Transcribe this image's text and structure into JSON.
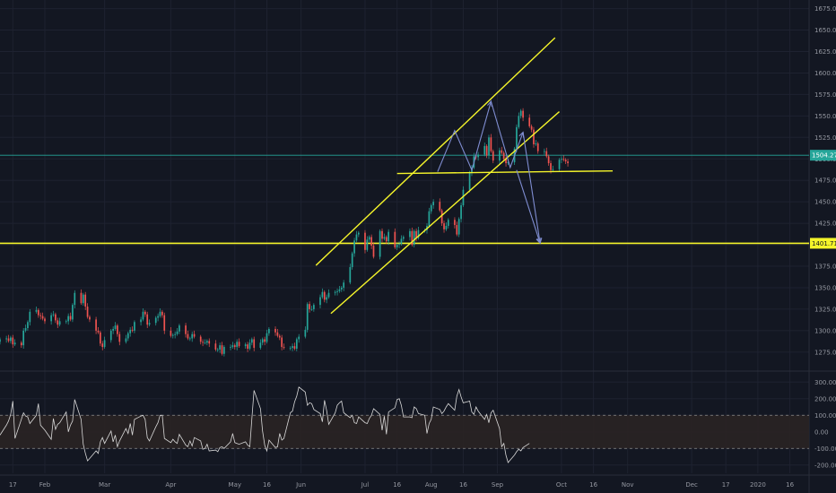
{
  "colors": {
    "background": "#131722",
    "grid": "#1e2230",
    "axis_text": "#9598a1",
    "up": "#26a69a",
    "down": "#ef5350",
    "annotation_yellow": "#f5f52a",
    "arrow": "#7f8dd1",
    "cci_line": "#d8d8d8",
    "band_fill": "#2a2424"
  },
  "chart_data": [
    {
      "type": "candlestick",
      "name": "price",
      "ylim": [
        1255,
        1685
      ],
      "y_ticks": [
        1275,
        1300,
        1325,
        1350,
        1375,
        1400,
        1425,
        1450,
        1475,
        1500,
        1525,
        1550,
        1575,
        1600,
        1625,
        1650,
        1675
      ],
      "y_tick_labels": [
        "1275.00",
        "1300.00",
        "1325.00",
        "1350.00",
        "1375.00",
        "1400.00",
        "1425.00",
        "1450.00",
        "1475.00",
        "1500.00",
        "1525.00",
        "1550.00",
        "1575.00",
        "1600.00",
        "1625.00",
        "1650.00",
        "1675.00"
      ],
      "x_range": [
        "2019-01-11",
        "2020-01-25"
      ],
      "x_ticks": [
        {
          "date": "2019-01-17",
          "label": "17"
        },
        {
          "date": "2019-02-01",
          "label": "Feb"
        },
        {
          "date": "2019-03-01",
          "label": "Mar"
        },
        {
          "date": "2019-04-01",
          "label": "Apr"
        },
        {
          "date": "2019-05-01",
          "label": "May"
        },
        {
          "date": "2019-05-16",
          "label": "16"
        },
        {
          "date": "2019-06-01",
          "label": "Jun"
        },
        {
          "date": "2019-07-01",
          "label": "Jul"
        },
        {
          "date": "2019-07-16",
          "label": "16"
        },
        {
          "date": "2019-08-01",
          "label": "Aug"
        },
        {
          "date": "2019-08-16",
          "label": "16"
        },
        {
          "date": "2019-09-01",
          "label": "Sep"
        },
        {
          "date": "2019-10-01",
          "label": "Oct"
        },
        {
          "date": "2019-10-16",
          "label": "16"
        },
        {
          "date": "2019-11-01",
          "label": "Nov"
        },
        {
          "date": "2019-12-01",
          "label": "Dec"
        },
        {
          "date": "2019-12-17",
          "label": "17"
        },
        {
          "date": "2020-01-01",
          "label": "2020"
        },
        {
          "date": "2020-01-16",
          "label": "16"
        }
      ],
      "series_start": "2019-01-11",
      "closes": [
        1290,
        1291,
        1288,
        1292,
        1284,
        1286,
        1283,
        1300,
        1303,
        1310,
        1322,
        1324,
        1318,
        1317,
        1314,
        1311,
        1318,
        1319,
        1312,
        1307,
        1311,
        1311,
        1317,
        1313,
        1330,
        1344,
        1332,
        1342,
        1328,
        1316,
        1313,
        1300,
        1298,
        1285,
        1281,
        1289,
        1300,
        1302,
        1306,
        1296,
        1287,
        1291,
        1297,
        1301,
        1300,
        1310,
        1313,
        1322,
        1319,
        1307,
        1309,
        1315,
        1317,
        1322,
        1318,
        1300,
        1294,
        1295,
        1296,
        1299,
        1306,
        1296,
        1291,
        1291,
        1296,
        1293,
        1287,
        1286,
        1286,
        1288,
        1285,
        1278,
        1278,
        1283,
        1273,
        1281,
        1281,
        1283,
        1281,
        1287,
        1282,
        1284,
        1279,
        1286,
        1290,
        1280,
        1286,
        1290,
        1287,
        1297,
        1302,
        1298,
        1294,
        1292,
        1281,
        1280,
        1280,
        1282,
        1279,
        1290,
        1293,
        1301,
        1331,
        1325,
        1325,
        1330,
        1339,
        1345,
        1336,
        1339,
        1344,
        1345,
        1346,
        1348,
        1350,
        1356,
        1374,
        1390,
        1405,
        1412,
        1414,
        1394,
        1406,
        1409,
        1399,
        1386,
        1416,
        1407,
        1409,
        1404,
        1415,
        1397,
        1400,
        1401,
        1407,
        1409,
        1416,
        1400,
        1416,
        1408,
        1417,
        1417,
        1422,
        1439,
        1446,
        1450,
        1440,
        1425,
        1418,
        1422,
        1429,
        1423,
        1412,
        1430,
        1446,
        1464,
        1484,
        1490,
        1503,
        1502,
        1505,
        1515,
        1504,
        1525,
        1509,
        1498,
        1510,
        1507,
        1500,
        1495,
        1496,
        1512,
        1537,
        1550,
        1556,
        1548,
        1538,
        1534,
        1517,
        1518,
        1509,
        1509,
        1503,
        1495,
        1487,
        1488,
        1499,
        1500,
        1499,
        1497,
        1495
      ],
      "annotations": {
        "horizontal_levels": [
          1504.27,
          1401.71
        ],
        "price_badges": [
          {
            "value": 1504.27,
            "label": "1504.27"
          },
          {
            "value": 1401.71,
            "label": "1401.71"
          }
        ],
        "channel_upper": {
          "from": [
            "2019-06-08",
            1376
          ],
          "to": [
            "2019-09-28",
            1641
          ]
        },
        "channel_lower": {
          "from": [
            "2019-06-15",
            1320
          ],
          "to": [
            "2019-09-30",
            1555
          ]
        },
        "neckline": {
          "from": [
            "2019-07-16",
            1483
          ],
          "to": [
            "2019-10-25",
            1486
          ]
        },
        "projection_path": [
          [
            "2019-08-04",
            1485
          ],
          [
            "2019-08-12",
            1533
          ],
          [
            "2019-08-20",
            1487
          ],
          [
            "2019-08-29",
            1567
          ],
          [
            "2019-09-07",
            1490
          ],
          [
            "2019-09-13",
            1531
          ],
          [
            "2019-09-21",
            1402
          ]
        ],
        "projection_path_2": [
          [
            "2019-09-10",
            1487
          ],
          [
            "2019-09-21",
            1402
          ]
        ]
      }
    },
    {
      "type": "line",
      "name": "oscillator",
      "ylim": [
        -250,
        350
      ],
      "y_ticks": [
        300,
        200,
        100,
        0,
        -100,
        -200
      ],
      "y_tick_labels": [
        "300.00",
        "200.00",
        "100.00",
        "0.00",
        "-100.00",
        "-200.00"
      ],
      "band": [
        -100,
        100
      ],
      "values": [
        -20,
        40,
        65,
        105,
        185,
        -40,
        75,
        115,
        95,
        90,
        50,
        100,
        170,
        40,
        25,
        10,
        -45,
        80,
        15,
        45,
        55,
        120,
        0,
        40,
        65,
        195,
        75,
        -75,
        -130,
        -175,
        -160,
        -115,
        -130,
        -60,
        -35,
        -70,
        5,
        -60,
        -20,
        -90,
        -55,
        20,
        -10,
        50,
        -20,
        75,
        95,
        100,
        75,
        -35,
        -55,
        30,
        55,
        100,
        100,
        -40,
        -65,
        -45,
        -60,
        -70,
        -15,
        -80,
        -90,
        -55,
        -85,
        -35,
        -55,
        -105,
        -100,
        -75,
        -115,
        -110,
        -120,
        -95,
        -90,
        -100,
        -60,
        -10,
        -65,
        -70,
        -75,
        -60,
        -80,
        -90,
        80,
        250,
        140,
        5,
        -80,
        -115,
        -50,
        -95,
        -90,
        -10,
        -50,
        -40,
        115,
        125,
        180,
        215,
        270,
        240,
        160,
        175,
        170,
        135,
        110,
        60,
        190,
        130,
        45,
        115,
        160,
        175,
        185,
        115,
        85,
        100,
        55,
        50,
        90,
        55,
        50,
        80,
        100,
        140,
        105,
        10,
        95,
        -15,
        120,
        145,
        195,
        200,
        160,
        90,
        90,
        85,
        150,
        140,
        110,
        100,
        -10,
        50,
        75,
        150,
        135,
        110,
        125,
        150,
        170,
        130,
        215,
        255,
        210,
        175,
        185,
        120,
        105,
        150,
        125,
        75,
        105,
        55,
        115,
        130,
        20,
        -90,
        -70,
        -140,
        -185,
        -140,
        -120,
        -105,
        -115,
        -95,
        -70
      ]
    }
  ]
}
